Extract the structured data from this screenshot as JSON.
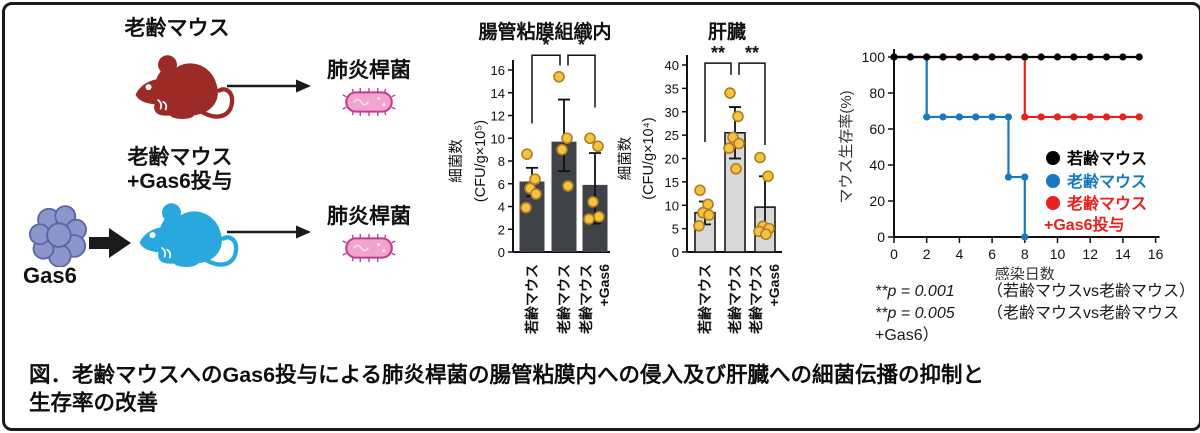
{
  "figure": {
    "caption": "図．老齢マウスへのGas6投与による肺炎桿菌の腸管粘膜内への侵入及び肝臓への細菌伝播の抑制と\n生存率の改善"
  },
  "left_panel": {
    "group1": {
      "title": "老齢マウス",
      "bacteria_label": "肺炎桿菌"
    },
    "group2": {
      "title": "老齢マウス\n+Gas6投与",
      "gas6_label": "Gas6",
      "bacteria_label": "肺炎桿菌"
    },
    "colors": {
      "aged_mouse": "#9c2a26",
      "treated_mouse": "#29a8dd",
      "gas6_blob_fill": "#8d96cb",
      "gas6_blob_outline": "#5a64a9",
      "bacteria_fill": "#f2a3cf",
      "bacteria_outline": "#c13e8f",
      "arrow": "#1a1a1a"
    }
  },
  "chart_data": [
    {
      "type": "bar",
      "title": "腸管粘膜組織内",
      "ylabel": "細菌数",
      "yunit": "(CFU/g×10⁵)",
      "ylim": [
        0,
        16
      ],
      "yticks": [
        0,
        2,
        4,
        6,
        8,
        10,
        12,
        14,
        16
      ],
      "categories": [
        [
          "若齢マウス"
        ],
        [
          "老齢マウス"
        ],
        [
          "老齢マウス",
          "+Gas6"
        ]
      ],
      "values": [
        6.2,
        9.7,
        5.9
      ],
      "err_low": [
        4.9,
        7.1,
        2.5
      ],
      "err_high": [
        7.4,
        13.4,
        8.7
      ],
      "points": [
        [
          8.6,
          6.4,
          5.6,
          5.1,
          3.9
        ],
        [
          15.4,
          10.0,
          9.0,
          5.8
        ],
        [
          10.0,
          9.3,
          4.4,
          3.1,
          2.9
        ]
      ],
      "bar_fill": "#3f4246",
      "bar_stroke": "none",
      "point_fill": "#f5c242",
      "point_stroke": "#b07f1e",
      "significance": [
        {
          "from": 0,
          "to": 1,
          "label": "*",
          "bracket_val": 17.3,
          "from_val": 11.3,
          "to_val": 16.4
        },
        {
          "from": 1,
          "to": 2,
          "label": "*",
          "bracket_val": 17.3,
          "from_val": 16.4,
          "to_val": 12.7
        }
      ]
    },
    {
      "type": "bar",
      "title": "肝臓",
      "ylabel": "細菌数",
      "yunit": "(CFU/g×10⁴)",
      "ylim": [
        0,
        40
      ],
      "yticks": [
        0,
        5,
        10,
        15,
        20,
        25,
        30,
        35,
        40
      ],
      "categories": [
        [
          "若齢マウス"
        ],
        [
          "老齢マウス"
        ],
        [
          "老齢マウス",
          "+Gas6"
        ]
      ],
      "values": [
        8.4,
        25.5,
        9.6
      ],
      "err_low": [
        5.9,
        20.0,
        4.0
      ],
      "err_high": [
        10.8,
        31.0,
        16.2
      ],
      "points": [
        [
          13.2,
          10.2,
          8.4,
          7.9,
          5.6
        ],
        [
          34.0,
          29.0,
          24.5,
          23.2,
          22.2,
          17.8
        ],
        [
          20.2,
          16.2,
          5.5,
          5.0,
          4.4,
          3.8
        ]
      ],
      "bar_fill": "#d8d8d8",
      "bar_stroke": "#1a1a1a",
      "point_fill": "#f5c242",
      "point_stroke": "#b07f1e",
      "significance": [
        {
          "from": 0,
          "to": 1,
          "label": "**",
          "bracket_val": 40.4,
          "from_val": 23.5,
          "to_val": 37.9
        },
        {
          "from": 1,
          "to": 2,
          "label": "**",
          "bracket_val": 40.4,
          "from_val": 37.9,
          "to_val": 22.9
        }
      ]
    },
    {
      "type": "step_line",
      "ylabel": "マウス生存率(%)",
      "xlabel": "感染日数",
      "ylim": [
        0,
        100
      ],
      "yticks": [
        0,
        20,
        40,
        60,
        80,
        100
      ],
      "xlim": [
        0,
        16
      ],
      "xticks": [
        0,
        2,
        4,
        6,
        8,
        10,
        12,
        14,
        16
      ],
      "series": [
        {
          "name": "老齢マウス+Gas6投与",
          "color": "#e8211d",
          "path": [
            [
              0,
              100
            ],
            [
              8,
              100
            ],
            [
              8,
              66.7
            ],
            [
              15,
              66.7
            ]
          ],
          "markers": [
            [
              0,
              100
            ],
            [
              1,
              100
            ],
            [
              2,
              100
            ],
            [
              3,
              100
            ],
            [
              4,
              100
            ],
            [
              5,
              100
            ],
            [
              6,
              100
            ],
            [
              7,
              100
            ],
            [
              8,
              100
            ],
            [
              8,
              66.7
            ],
            [
              9,
              66.7
            ],
            [
              10,
              66.7
            ],
            [
              11,
              66.7
            ],
            [
              12,
              66.7
            ],
            [
              13,
              66.7
            ],
            [
              14,
              66.7
            ],
            [
              15,
              66.7
            ]
          ]
        },
        {
          "name": "老齢マウス",
          "color": "#1879c0",
          "path": [
            [
              0,
              100
            ],
            [
              2,
              100
            ],
            [
              2,
              66.7
            ],
            [
              7,
              66.7
            ],
            [
              7,
              33.3
            ],
            [
              8,
              33.3
            ],
            [
              8,
              0
            ]
          ],
          "markers": [
            [
              0,
              100
            ],
            [
              1,
              100
            ],
            [
              2,
              100
            ],
            [
              2,
              66.7
            ],
            [
              3,
              66.7
            ],
            [
              4,
              66.7
            ],
            [
              5,
              66.7
            ],
            [
              6,
              66.7
            ],
            [
              7,
              66.7
            ],
            [
              7,
              33.3
            ],
            [
              8,
              33.3
            ],
            [
              8,
              0
            ]
          ]
        },
        {
          "name": "若齢マウス",
          "color": "#000000",
          "path": [
            [
              0,
              100
            ],
            [
              15,
              100
            ]
          ],
          "markers": [
            [
              0,
              100
            ],
            [
              1,
              100
            ],
            [
              2,
              100
            ],
            [
              3,
              100
            ],
            [
              4,
              100
            ],
            [
              5,
              100
            ],
            [
              6,
              100
            ],
            [
              7,
              100
            ],
            [
              8,
              100
            ],
            [
              9,
              100
            ],
            [
              10,
              100
            ],
            [
              11,
              100
            ],
            [
              12,
              100
            ],
            [
              13,
              100
            ],
            [
              14,
              100
            ],
            [
              15,
              100
            ]
          ]
        }
      ],
      "legend": [
        {
          "label": "若齢マウス",
          "color": "#000000",
          "marker": true
        },
        {
          "label": "老齢マウス",
          "color": "#1879c0",
          "marker": true
        },
        {
          "label": "老齢マウス",
          "color": "#e8211d",
          "marker": true
        },
        {
          "label": "+Gas6投与",
          "color": "#e8211d",
          "marker": false
        }
      ]
    }
  ],
  "stats_notes": [
    {
      "stat": "**p = 0.001",
      "comparison": "（若齢マウスvs老齢マウス）"
    },
    {
      "stat": "**p = 0.005",
      "comparison": "（老齢マウスvs老齢マウス+Gas6）"
    }
  ]
}
